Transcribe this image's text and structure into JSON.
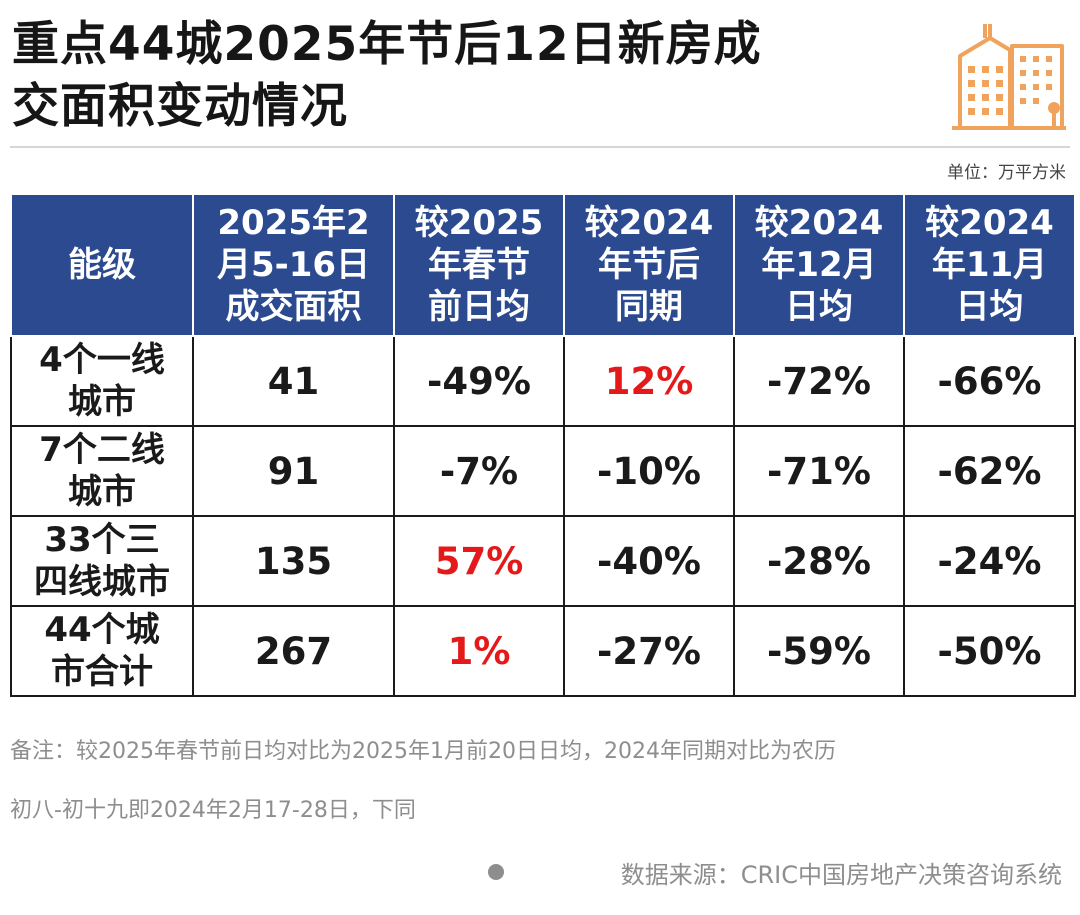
{
  "title": {
    "line1": "重点44城2025年节后12日新房成",
    "line2": "交面积变动情况"
  },
  "unit": "单位：万平方米",
  "table": {
    "headers": [
      {
        "line1": "能级",
        "line2": "",
        "line3": ""
      },
      {
        "line1": "2025年2",
        "line2": "月5-16日",
        "line3": "成交面积"
      },
      {
        "line1": "较2025",
        "line2": "年春节",
        "line3": "前日均"
      },
      {
        "line1": "较2024",
        "line2": "年节后",
        "line3": "同期"
      },
      {
        "line1": "较2024",
        "line2": "年12月",
        "line3": "日均"
      },
      {
        "line1": "较2024",
        "line2": "年11月",
        "line3": "日均"
      }
    ],
    "rows": [
      {
        "level_line1": "4个一线",
        "level_line2": "城市",
        "area": "41",
        "vs_pre_festival": "-49%",
        "vs_2024_same": "12%",
        "vs_dec": "-72%",
        "vs_nov": "-66%"
      },
      {
        "level_line1": "7个二线",
        "level_line2": "城市",
        "area": "91",
        "vs_pre_festival": "-7%",
        "vs_2024_same": "-10%",
        "vs_dec": "-71%",
        "vs_nov": "-62%"
      },
      {
        "level_line1": "33个三",
        "level_line2": "四线城市",
        "area": "135",
        "vs_pre_festival": "57%",
        "vs_2024_same": "-40%",
        "vs_dec": "-28%",
        "vs_nov": "-24%"
      },
      {
        "level_line1": "44个城",
        "level_line2": "市合计",
        "area": "267",
        "vs_pre_festival": "1%",
        "vs_2024_same": "-27%",
        "vs_dec": "-59%",
        "vs_nov": "-50%"
      }
    ]
  },
  "note": {
    "line1": "备注：较2025年春节前日均对比为2025年1月前20日日均，2024年同期对比为农历",
    "line2": "初八-初十九即2024年2月17-28日，下同"
  },
  "source": "数据来源：CRIC中国房地产决策咨询系统",
  "colors": {
    "header_bg": "#2b4a8f",
    "positive_highlight": "#e41a1a",
    "logo": "#f0a35c"
  }
}
